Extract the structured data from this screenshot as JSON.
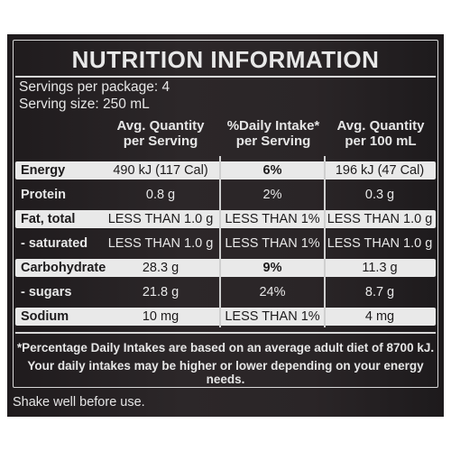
{
  "title": "NUTRITION INFORMATION",
  "servings_per_package": "Servings per package: 4",
  "serving_size": "Serving size: 250 mL",
  "columns": {
    "c1_line1": "Avg. Quantity",
    "c1_line2": "per Serving",
    "c2_line1": "%Daily Intake*",
    "c2_line2": "per Serving",
    "c3_line1": "Avg. Quantity",
    "c3_line2": "per 100 mL"
  },
  "rows": [
    {
      "name": "Energy",
      "serving": "490 kJ (117 Cal)",
      "di": "6%",
      "per100": "196 kJ (47 Cal)"
    },
    {
      "name": "Protein",
      "serving": "0.8 g",
      "di": "2%",
      "per100": "0.3 g"
    },
    {
      "name": "Fat, total",
      "serving": "LESS THAN 1.0 g",
      "di": "LESS THAN 1%",
      "per100": "LESS THAN 1.0 g"
    },
    {
      "name": "- saturated",
      "serving": "LESS THAN 1.0 g",
      "di": "LESS THAN 1%",
      "per100": "LESS THAN 1.0 g"
    },
    {
      "name": "Carbohydrate",
      "serving": "28.3 g",
      "di": "9%",
      "per100": "11.3 g"
    },
    {
      "name": "- sugars",
      "serving": "21.8 g",
      "di": "24%",
      "per100": "8.7 g"
    },
    {
      "name": "Sodium",
      "serving": "10 mg",
      "di": "LESS THAN 1%",
      "per100": "4 mg"
    }
  ],
  "footnote_line1": "*Percentage Daily Intakes are based on an average adult diet of 8700 kJ.",
  "footnote_line2": "Your daily intakes may be higher or lower depending on your energy needs.",
  "shake": "Shake well before use.",
  "colors": {
    "label_bg": "#262224",
    "row_light": "#e9e9e9",
    "text_light": "#e6e6e6"
  }
}
